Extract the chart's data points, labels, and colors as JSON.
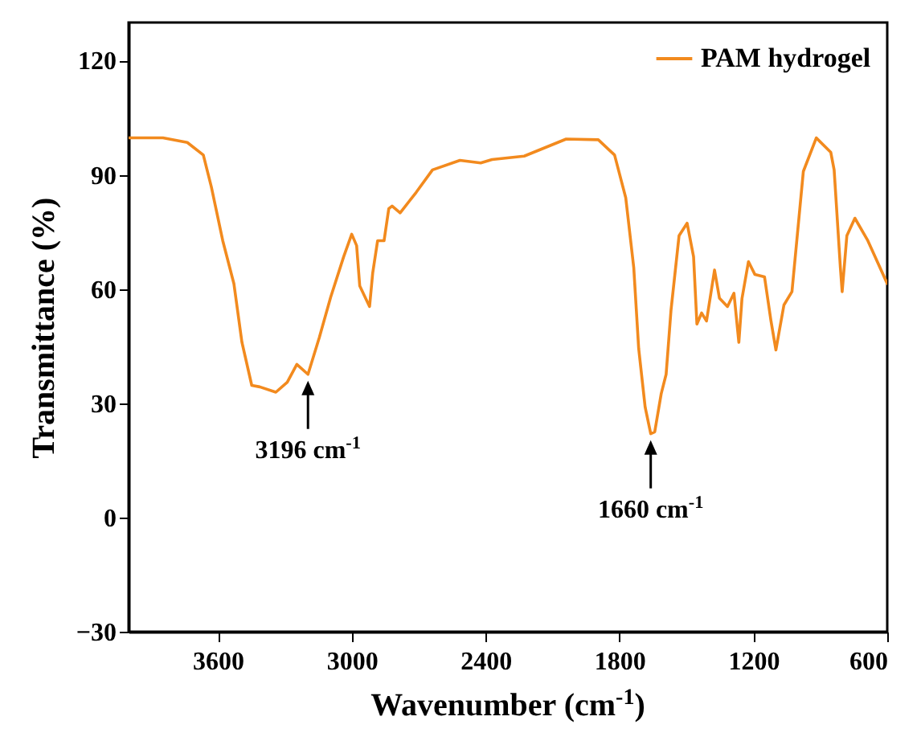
{
  "chart_data": {
    "type": "line",
    "xlabel": "Wavenumber (cm$^{-1}$)",
    "ylabel": "Transmittance (%)",
    "x": [
      4000,
      3846,
      3737,
      3665,
      3629,
      3578,
      3528,
      3492,
      3448,
      3412,
      3340,
      3289,
      3246,
      3196,
      3145,
      3094,
      3036,
      3000,
      2978,
      2964,
      2920,
      2906,
      2884,
      2855,
      2834,
      2819,
      2783,
      2711,
      2638,
      2515,
      2422,
      2371,
      2227,
      2039,
      1895,
      1822,
      1772,
      1736,
      1714,
      1685,
      1660,
      1642,
      1613,
      1591,
      1569,
      1533,
      1497,
      1468,
      1453,
      1432,
      1410,
      1374,
      1352,
      1316,
      1287,
      1265,
      1251,
      1222,
      1193,
      1150,
      1121,
      1099,
      1063,
      1027,
      976,
      918,
      853,
      838,
      810,
      802,
      781,
      745,
      687,
      600
    ],
    "series": [
      {
        "name": "PAM hydrogel",
        "color": "#f28a1e",
        "values": [
          99.7,
          99.7,
          98.5,
          95.2,
          86.8,
          72.7,
          61.4,
          46,
          34.7,
          34.3,
          32.9,
          35.5,
          40.2,
          37.6,
          47.3,
          57.9,
          68.5,
          74.4,
          71.4,
          60.8,
          55.4,
          64.2,
          72.7,
          72.7,
          81.1,
          81.8,
          80,
          85.4,
          91.3,
          93.8,
          93.1,
          94,
          94.9,
          99.4,
          99.2,
          95.2,
          84,
          65.6,
          44.4,
          29,
          22,
          22.5,
          32.5,
          37.6,
          54.5,
          74,
          77.3,
          68.5,
          50.8,
          53.7,
          51.6,
          65,
          57.6,
          55.4,
          58.9,
          46,
          57.5,
          67.2,
          63.8,
          63.2,
          51.6,
          44,
          55.8,
          59.3,
          90.9,
          99.7,
          95.9,
          91.3,
          65.6,
          59.3,
          74,
          78.6,
          72.7,
          61.4
        ]
      }
    ],
    "xlim": [
      4000,
      600
    ],
    "xticks": [
      3600,
      3000,
      2400,
      1800,
      1200,
      600
    ],
    "ylim": [
      -30,
      130
    ],
    "yticks": [
      -30,
      0,
      30,
      60,
      90,
      120
    ],
    "grid": false,
    "legend": "top right",
    "line_style": "solid",
    "annotations": [
      {
        "text": "3196 cm$^{-1}$",
        "x": 3196,
        "y": 37.6
      },
      {
        "text": "1660 cm$^{-1}$",
        "x": 1660,
        "y": 22
      }
    ]
  }
}
